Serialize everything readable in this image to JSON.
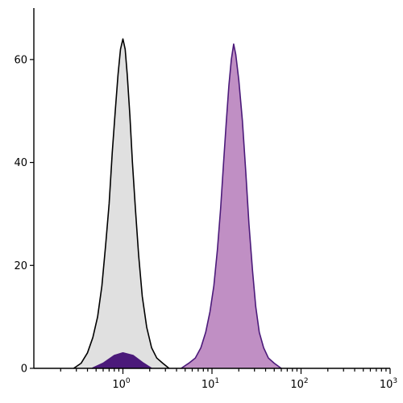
{
  "chart_data": {
    "type": "area",
    "title": "",
    "xlabel": "",
    "ylabel": "",
    "x_scale": "log",
    "xlim": [
      0.1,
      1000
    ],
    "ylim": [
      0,
      70
    ],
    "grid": false,
    "legend": "none",
    "x_ticks": [
      {
        "value": 1,
        "base": "10",
        "exp": "0"
      },
      {
        "value": 10,
        "base": "10",
        "exp": "1"
      },
      {
        "value": 100,
        "base": "10",
        "exp": "2"
      },
      {
        "value": 1000,
        "base": "10",
        "exp": "3"
      }
    ],
    "y_ticks": [
      {
        "value": 0,
        "label": "0"
      },
      {
        "value": 20,
        "label": "20"
      },
      {
        "value": 40,
        "label": "40"
      },
      {
        "value": 60,
        "label": "60"
      }
    ],
    "series": [
      {
        "color_fill": "#e0e0e0",
        "color_line": "#000000",
        "x": [
          0.28,
          0.34,
          0.4,
          0.46,
          0.52,
          0.58,
          0.64,
          0.7,
          0.76,
          0.82,
          0.88,
          0.94,
          1.0,
          1.06,
          1.12,
          1.2,
          1.28,
          1.38,
          1.5,
          1.65,
          1.85,
          2.1,
          2.4,
          2.8,
          3.3
        ],
        "y": [
          0,
          1,
          3,
          6,
          10,
          16,
          24,
          32,
          42,
          50,
          57,
          62,
          64,
          62,
          57,
          49,
          40,
          31,
          22,
          14,
          8,
          4,
          2,
          1,
          0
        ]
      },
      {
        "color_fill": "#c08fc4",
        "color_line": "#4b1a7a",
        "x": [
          4.5,
          5.5,
          6.5,
          7.5,
          8.5,
          9.5,
          10.5,
          11.5,
          12.5,
          13.5,
          14.5,
          15.5,
          16.5,
          17.5,
          18.5,
          20,
          22,
          24,
          26,
          28.5,
          31,
          34,
          38,
          43,
          50,
          60
        ],
        "y": [
          0,
          1,
          2,
          4,
          7,
          11,
          16,
          23,
          31,
          40,
          48,
          55,
          60,
          63,
          61,
          56,
          48,
          38,
          28,
          19,
          12,
          7,
          4,
          2,
          1,
          0
        ]
      },
      {
        "color_fill": "#4b1a7a",
        "color_line": "#4b1a7a",
        "x": [
          0.45,
          0.6,
          0.8,
          1.0,
          1.3,
          1.7,
          2.1
        ],
        "y": [
          0,
          1,
          2.5,
          3,
          2.5,
          1,
          0
        ]
      }
    ]
  }
}
